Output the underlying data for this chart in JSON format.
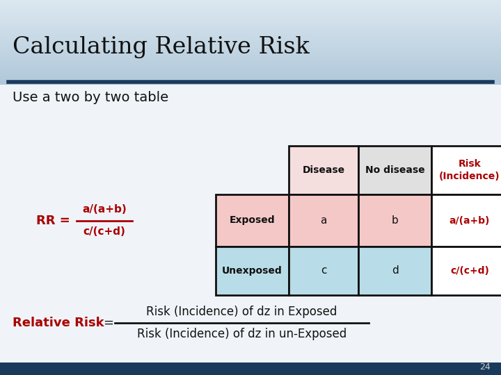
{
  "title": "Calculating Relative Risk",
  "subtitle": "Use a two by two table",
  "bg_top_color": "#2e5a8a",
  "bg_mid_color": "#7aa0be",
  "bg_bottom_color": "#dce8f0",
  "content_bg_color": "#dce8f5",
  "title_color": "#111111",
  "subtitle_color": "#111111",
  "dark_red": "#aa0000",
  "line_color": "#1a3a5c",
  "footer_color": "#1a3a5c",
  "table_header_disease_bg": "#f5dede",
  "table_header_nodisease_bg": "#e0e0e0",
  "table_header_risk_bg": "#ffffff",
  "table_exposed_label_bg": "#f5c8c8",
  "table_exposed_ab_bg": "#f5c8c8",
  "table_exposed_risk_bg": "#ffffff",
  "table_unexposed_label_bg": "#b8dde8",
  "table_unexposed_cd_bg": "#b8dde8",
  "table_unexposed_risk_bg": "#ffffff",
  "table_border_color": "#111111",
  "rr_label": "RR =",
  "rr_numerator": "a/(a+b)",
  "rr_denominator": "c/(c+d)",
  "rr_color": "#aa0000",
  "rel_risk_label": "Relative Risk",
  "rel_risk_numerator": "Risk (Incidence) of dz in Exposed",
  "rel_risk_denominator": "Risk (Incidence) of dz in un-Exposed",
  "rel_risk_label_color": "#aa0000",
  "rel_risk_text_color": "#111111",
  "page_number": "24"
}
